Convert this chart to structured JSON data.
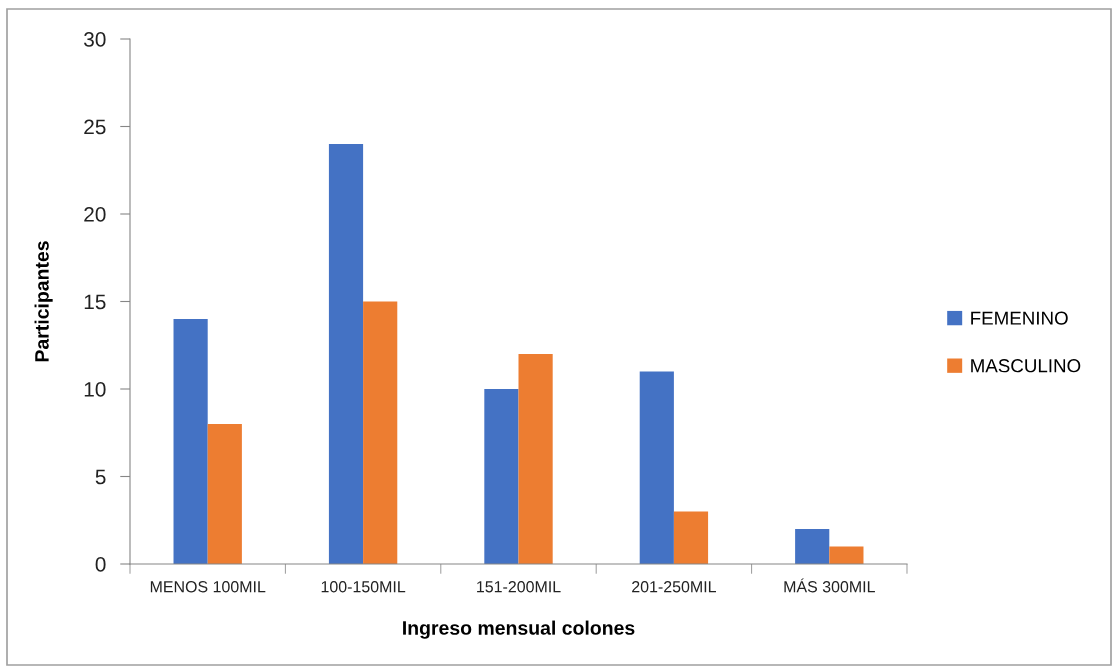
{
  "chart_data": {
    "type": "bar",
    "xlabel": "Ingreso mensual colones",
    "ylabel": "Participantes",
    "categories": [
      "MENOS 100MIL",
      "100-150MIL",
      "151-200MIL",
      "201-250MIL",
      "MÁS 300MIL"
    ],
    "series": [
      {
        "name": "FEMENINO",
        "color": "#4472c4",
        "values": [
          14,
          24,
          10,
          11,
          2
        ]
      },
      {
        "name": "MASCULINO",
        "color": "#ed7d31",
        "values": [
          8,
          15,
          12,
          3,
          1
        ]
      }
    ],
    "ylim": [
      0,
      30
    ],
    "yticks": [
      0,
      5,
      10,
      15,
      20,
      25,
      30
    ],
    "grid": false,
    "legend": "right"
  }
}
